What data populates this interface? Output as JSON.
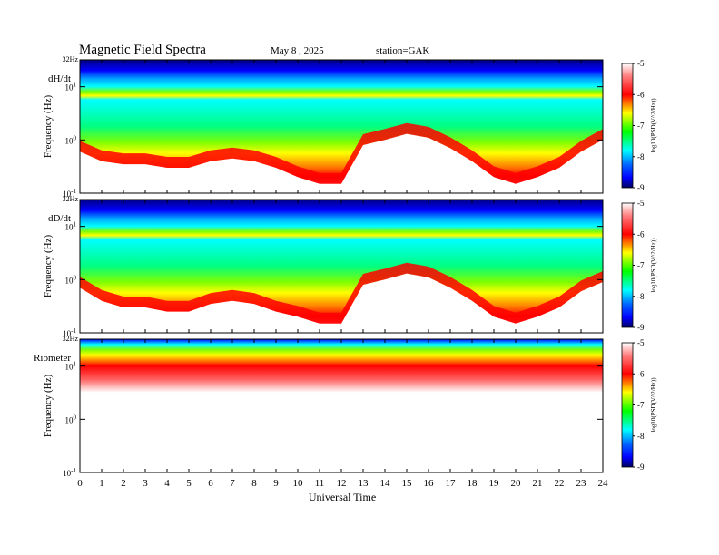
{
  "header": {
    "title": "Magnetic  Field  Spectra",
    "date": "May 8  , 2025",
    "station": "station=GAK"
  },
  "chart_data": [
    {
      "type": "heatmap",
      "panel_label": "dH/dt",
      "top_label": "32Hz",
      "ylabel": "Frequency  (Hz)",
      "y_scale": "log",
      "y_ticks": [
        {
          "base": "10",
          "exp": "1"
        },
        {
          "base": "10",
          "exp": "0"
        },
        {
          "base": "10",
          "exp": "-1"
        }
      ],
      "xlim": [
        0,
        24
      ],
      "ylim_hz": [
        0.1,
        32
      ],
      "colorbar": {
        "label": "log10(PSD(V^2/Hz))",
        "ticks": [
          "-5",
          "-6",
          "-7",
          "-8",
          "-9"
        ],
        "range": [
          -9,
          -5
        ]
      },
      "features": [
        {
          "name": "low_freq_noise_edge_hz",
          "x_hours": [
            0,
            1,
            2,
            3,
            4,
            5,
            6,
            7,
            8,
            9,
            10,
            11,
            12,
            13,
            14,
            15,
            16,
            17,
            18,
            19,
            20,
            21,
            22,
            23,
            24
          ],
          "y_hz": [
            0.6,
            0.4,
            0.35,
            0.35,
            0.3,
            0.3,
            0.4,
            0.45,
            0.4,
            0.3,
            0.2,
            0.15,
            0.15,
            0.8,
            1.0,
            1.3,
            1.1,
            0.7,
            0.4,
            0.2,
            0.15,
            0.2,
            0.3,
            0.6,
            1.0
          ]
        }
      ]
    },
    {
      "type": "heatmap",
      "panel_label": "dD/dt",
      "top_label": "32Hz",
      "ylabel": "Frequency  (Hz)",
      "y_scale": "log",
      "y_ticks": [
        {
          "base": "10",
          "exp": "1"
        },
        {
          "base": "10",
          "exp": "0"
        },
        {
          "base": "10",
          "exp": "-1"
        }
      ],
      "xlim": [
        0,
        24
      ],
      "ylim_hz": [
        0.1,
        32
      ],
      "colorbar": {
        "label": "log10(PSD(V^2/Hz))",
        "ticks": [
          "-5",
          "-6",
          "-7",
          "-8",
          "-9"
        ],
        "range": [
          -9,
          -5
        ]
      },
      "features": [
        {
          "name": "low_freq_noise_edge_hz",
          "x_hours": [
            0,
            1,
            2,
            3,
            4,
            5,
            6,
            7,
            8,
            9,
            10,
            11,
            12,
            13,
            14,
            15,
            16,
            17,
            18,
            19,
            20,
            21,
            22,
            23,
            24
          ],
          "y_hz": [
            0.7,
            0.4,
            0.3,
            0.3,
            0.25,
            0.25,
            0.35,
            0.4,
            0.35,
            0.25,
            0.2,
            0.15,
            0.15,
            0.8,
            1.0,
            1.3,
            1.1,
            0.7,
            0.4,
            0.2,
            0.15,
            0.2,
            0.3,
            0.6,
            0.9
          ]
        }
      ]
    },
    {
      "type": "heatmap",
      "panel_label": "Riometer",
      "top_label": "32Hz",
      "ylabel": "Frequency  (Hz)",
      "xlabel": "Universal  Time",
      "x_ticks": [
        "0",
        "1",
        "2",
        "3",
        "4",
        "5",
        "6",
        "7",
        "8",
        "9",
        "10",
        "11",
        "12",
        "13",
        "14",
        "15",
        "16",
        "17",
        "18",
        "19",
        "20",
        "21",
        "22",
        "23",
        "24"
      ],
      "y_scale": "log",
      "y_ticks": [
        {
          "base": "10",
          "exp": "1"
        },
        {
          "base": "10",
          "exp": "0"
        },
        {
          "base": "10",
          "exp": "-1"
        }
      ],
      "xlim": [
        0,
        24
      ],
      "ylim_hz": [
        0.1,
        32
      ],
      "colorbar": {
        "label": "log10(PSD(V^2/Hz))",
        "ticks": [
          "-5",
          "-6",
          "-7",
          "-8",
          "-9"
        ],
        "range": [
          -9,
          -5
        ]
      }
    }
  ],
  "colors": {
    "colormap": [
      "#000080",
      "#0000ff",
      "#00a0ff",
      "#00ffff",
      "#00ff80",
      "#80ff00",
      "#ffff00",
      "#ff8000",
      "#ff0000",
      "#ffffff"
    ]
  }
}
